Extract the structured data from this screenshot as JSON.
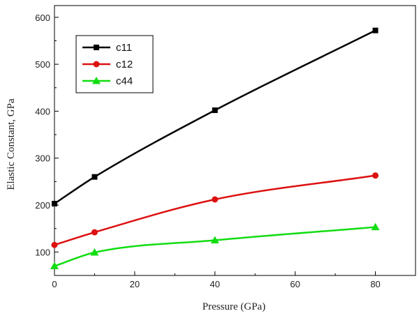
{
  "chart_data": {
    "type": "line",
    "title": "",
    "xlabel": "Pressure (GPa)",
    "ylabel": "Elastic Constant, GPa",
    "xlim": [
      0,
      90
    ],
    "ylim": [
      50,
      625
    ],
    "xticks": [
      0,
      20,
      40,
      60,
      80
    ],
    "yticks": [
      100,
      200,
      300,
      400,
      500,
      600
    ],
    "grid": false,
    "legend_position": "top-left",
    "x": [
      0,
      10,
      40,
      80
    ],
    "series": [
      {
        "name": "c11",
        "values": [
          203,
          260,
          402,
          572
        ],
        "color": "#000000",
        "marker": "square"
      },
      {
        "name": "c12",
        "values": [
          115,
          142,
          212,
          263
        ],
        "color": "#dd1111",
        "marker": "circle"
      },
      {
        "name": "c44",
        "values": [
          70,
          99,
          125,
          153
        ],
        "color": "#11dd11",
        "marker": "triangle"
      }
    ]
  }
}
